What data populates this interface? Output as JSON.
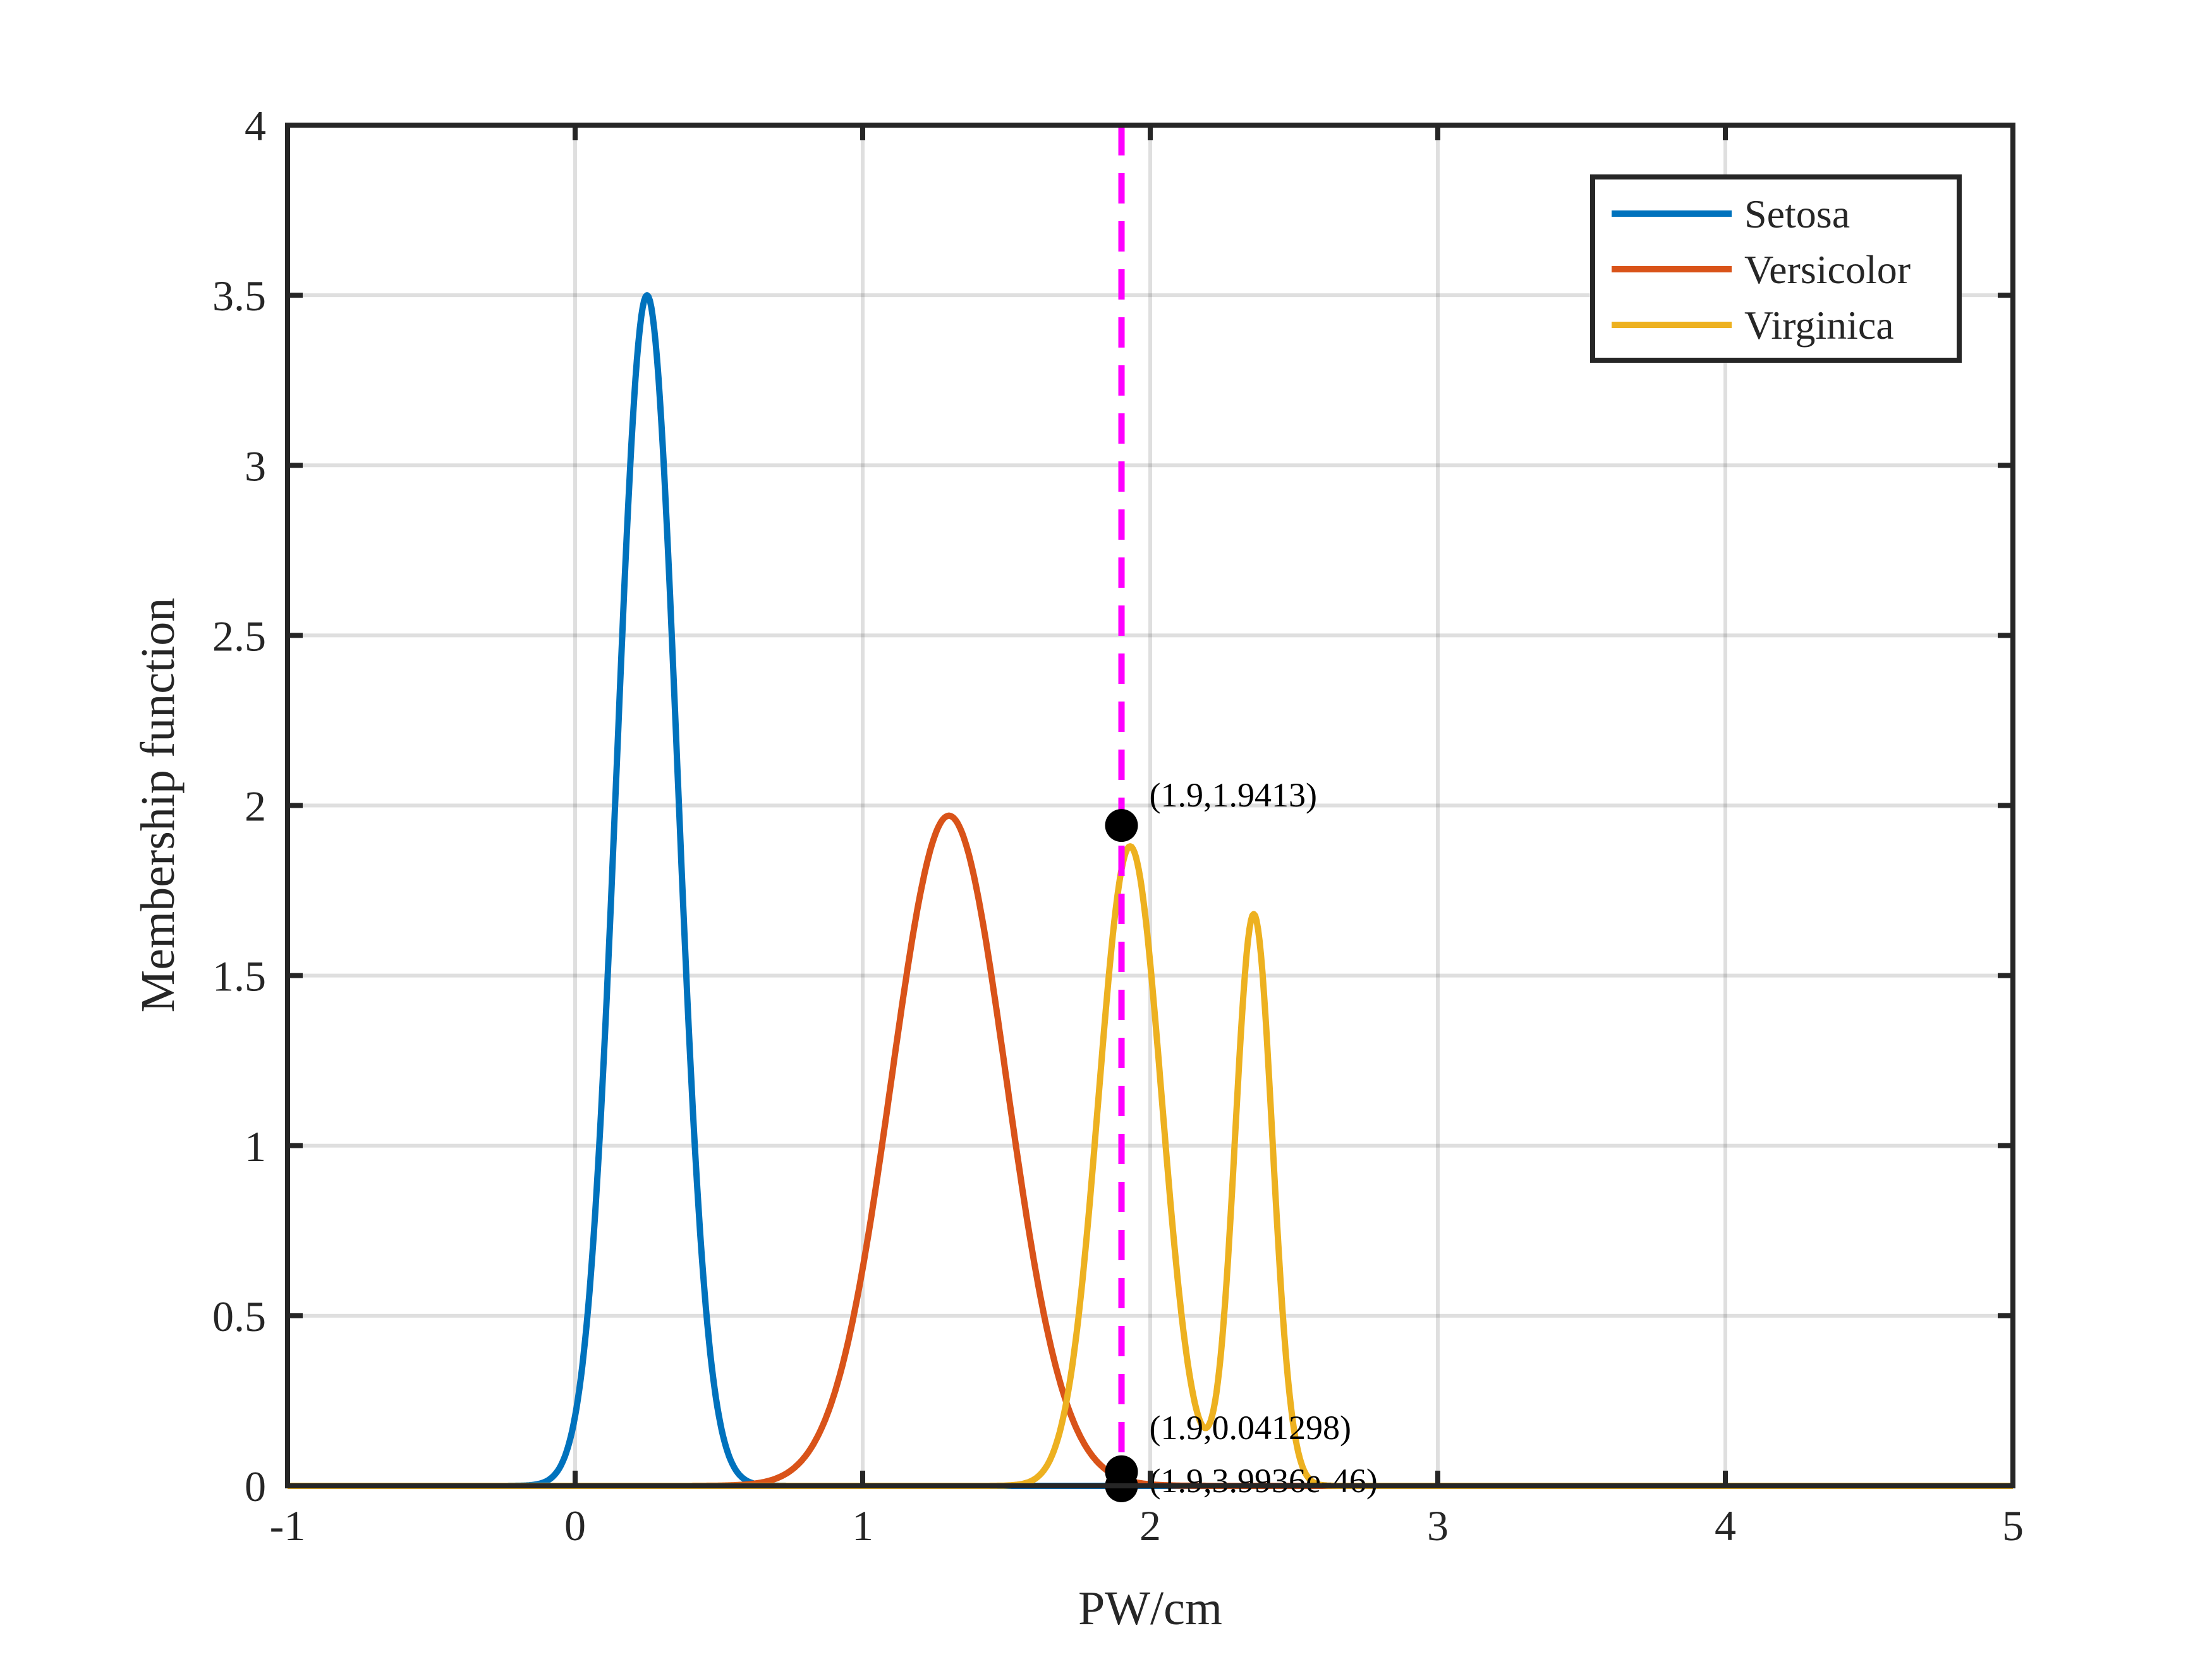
{
  "chart_data": {
    "type": "line",
    "xlabel": "PW/cm",
    "ylabel": "Membership function",
    "xlim": [
      -1,
      5
    ],
    "ylim": [
      0,
      4
    ],
    "grid": true,
    "xticks": [
      "-1",
      "0",
      "1",
      "2",
      "3",
      "4",
      "5"
    ],
    "yticks": [
      "0",
      "0.5",
      "1",
      "1.5",
      "2",
      "2.5",
      "3",
      "3.5",
      "4"
    ],
    "legend_position": "top-right",
    "series": [
      {
        "name": "Setosa",
        "color": "#0072BD",
        "components": [
          {
            "amp": 3.5,
            "mu": 0.25,
            "sigma": 0.105
          }
        ]
      },
      {
        "name": "Versicolor",
        "color": "#D95319",
        "components": [
          {
            "amp": 1.97,
            "mu": 1.3,
            "sigma": 0.2
          }
        ]
      },
      {
        "name": "Virginica",
        "color": "#EDB120",
        "components": [
          {
            "amp": 1.88,
            "mu": 1.93,
            "sigma": 0.11
          },
          {
            "amp": 1.68,
            "mu": 2.36,
            "sigma": 0.065
          }
        ]
      }
    ],
    "vline": {
      "x": 1.9,
      "color": "#FF00FF",
      "style": "dashed"
    },
    "points": [
      {
        "x": 1.9,
        "y": 1.9413,
        "label": "(1.9,1.9413)"
      },
      {
        "x": 1.9,
        "y": 0.041298,
        "label": "(1.9,0.041298)"
      },
      {
        "x": 1.9,
        "y": 0,
        "label": "(1.9,3.9936e-46)"
      }
    ]
  }
}
